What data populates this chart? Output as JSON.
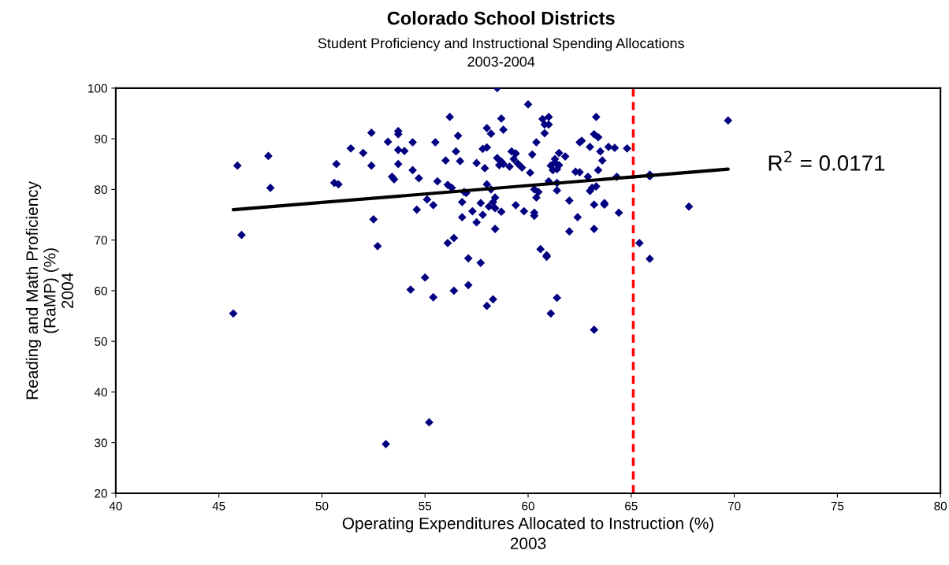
{
  "chart_data": {
    "type": "scatter",
    "title": "Colorado School Districts",
    "subtitle": "Student Proficiency and Instructional Spending Allocations\n2003-2004",
    "xlabel": "Operating Expenditures Allocated to Instruction (%)\n2003",
    "ylabel": "Reading and Math Proficiency\n(RaMP) (%)\n2004",
    "xlim": [
      40,
      80
    ],
    "xticks": [
      40,
      45,
      50,
      55,
      60,
      65,
      70,
      75,
      80
    ],
    "ylim": [
      20,
      100
    ],
    "yticks": [
      20,
      30,
      40,
      50,
      60,
      70,
      80,
      90,
      100
    ],
    "annotations": [
      "R$^{2}$ = 0.0171"
    ],
    "ref_lines": [
      {
        "axis": "x",
        "value": 65.1,
        "color": "#ff0000",
        "line_style": "dashed"
      }
    ],
    "series": [
      {
        "color": "#000080",
        "marker": "diamond",
        "x": [
          45.7,
          45.9,
          46.1,
          47.4,
          47.5,
          50.6,
          50.7,
          50.8,
          51.4,
          52,
          52.4,
          52.4,
          52.5,
          52.7,
          53.1,
          53.2,
          53.4,
          53.5,
          53.7,
          53.7,
          53.7,
          53.7,
          54,
          54.3,
          54.4,
          54.4,
          54.6,
          54.7,
          55,
          55.1,
          55.2,
          55.4,
          55.4,
          55.5,
          55.6,
          56,
          56.1,
          56.1,
          56.2,
          56.3,
          56.4,
          56.4,
          56.5,
          56.6,
          56.7,
          56.8,
          56.8,
          56.9,
          57,
          57.1,
          57.1,
          57.3,
          57.5,
          57.5,
          57.7,
          57.7,
          57.8,
          57.8,
          57.9,
          58,
          58,
          58,
          58,
          58.1,
          58.2,
          58.2,
          58.3,
          58.3,
          58.4,
          58.4,
          58.4,
          58.5,
          58.5,
          58.6,
          58.7,
          58.7,
          58.7,
          58.8,
          58.8,
          59.1,
          59.2,
          59.4,
          59.3,
          59.4,
          59.5,
          59.7,
          59.8,
          60,
          60.1,
          60.2,
          60.3,
          60.3,
          60.3,
          60.4,
          60.4,
          60.5,
          60.6,
          60.7,
          60.8,
          60.8,
          60.9,
          60.9,
          61,
          61,
          61,
          61.1,
          61.1,
          61.2,
          61.3,
          61.3,
          61.4,
          61.4,
          61.4,
          61.4,
          61.5,
          61.5,
          61.8,
          62,
          62,
          62.3,
          62.4,
          62.5,
          62.5,
          62.6,
          62.9,
          63,
          63,
          63.1,
          63.2,
          63.2,
          63.2,
          63.2,
          63.3,
          63.3,
          63.4,
          63.4,
          63.5,
          63.6,
          63.7,
          63.7,
          63.9,
          64.2,
          64.3,
          64.4,
          64.8,
          65.4,
          65.9,
          65.9,
          65.9,
          67.8,
          69.7
        ],
        "values": [
          55.5,
          84.7,
          71,
          86.6,
          80.3,
          81.3,
          85,
          81,
          88.1,
          87.2,
          91.2,
          84.7,
          74.1,
          68.8,
          29.7,
          89.4,
          82.5,
          82,
          91.5,
          90.9,
          87.8,
          85,
          87.6,
          60.2,
          83.8,
          89.3,
          76,
          82.2,
          62.6,
          78,
          34,
          58.7,
          76.9,
          89.3,
          81.6,
          85.7,
          80.9,
          69.4,
          94.3,
          80.3,
          70.4,
          60,
          87.5,
          90.6,
          85.6,
          77.5,
          74.5,
          79.5,
          79.3,
          66.4,
          61.1,
          75.7,
          85.2,
          73.5,
          65.5,
          77.3,
          75,
          88,
          84.2,
          92.1,
          88.3,
          81,
          57,
          76.6,
          91,
          80,
          58.3,
          77.5,
          72.2,
          78.4,
          76.3,
          100,
          86.2,
          84.8,
          85.5,
          75.6,
          94,
          85,
          91.8,
          84.5,
          87.5,
          76.9,
          86,
          87.1,
          85.1,
          84.3,
          75.7,
          96.8,
          83.3,
          86.9,
          80,
          75.4,
          74.8,
          89.3,
          78.4,
          79.5,
          68.2,
          93.9,
          92.8,
          91.1,
          67,
          66.7,
          94.3,
          92.8,
          81.6,
          55.5,
          84.7,
          83.8,
          86,
          85.3,
          84,
          81.3,
          79.8,
          58.6,
          87.2,
          84.8,
          86.5,
          77.8,
          71.7,
          83.5,
          74.5,
          83.4,
          89.3,
          89.6,
          82.5,
          88.4,
          79.7,
          80.3,
          90.9,
          72.2,
          77,
          52.3,
          94.3,
          80.6,
          90.3,
          83.8,
          87.5,
          85.7,
          77.3,
          77,
          88.4,
          88.2,
          82.5,
          75.4,
          88.1,
          69.4,
          82.6,
          82.9,
          66.3,
          76.6,
          93.6
        ]
      },
      {
        "type": "line",
        "color": "#000000",
        "marker": "none",
        "x": [
          45.7,
          69.7
        ],
        "values": [
          76,
          84
        ]
      }
    ]
  }
}
